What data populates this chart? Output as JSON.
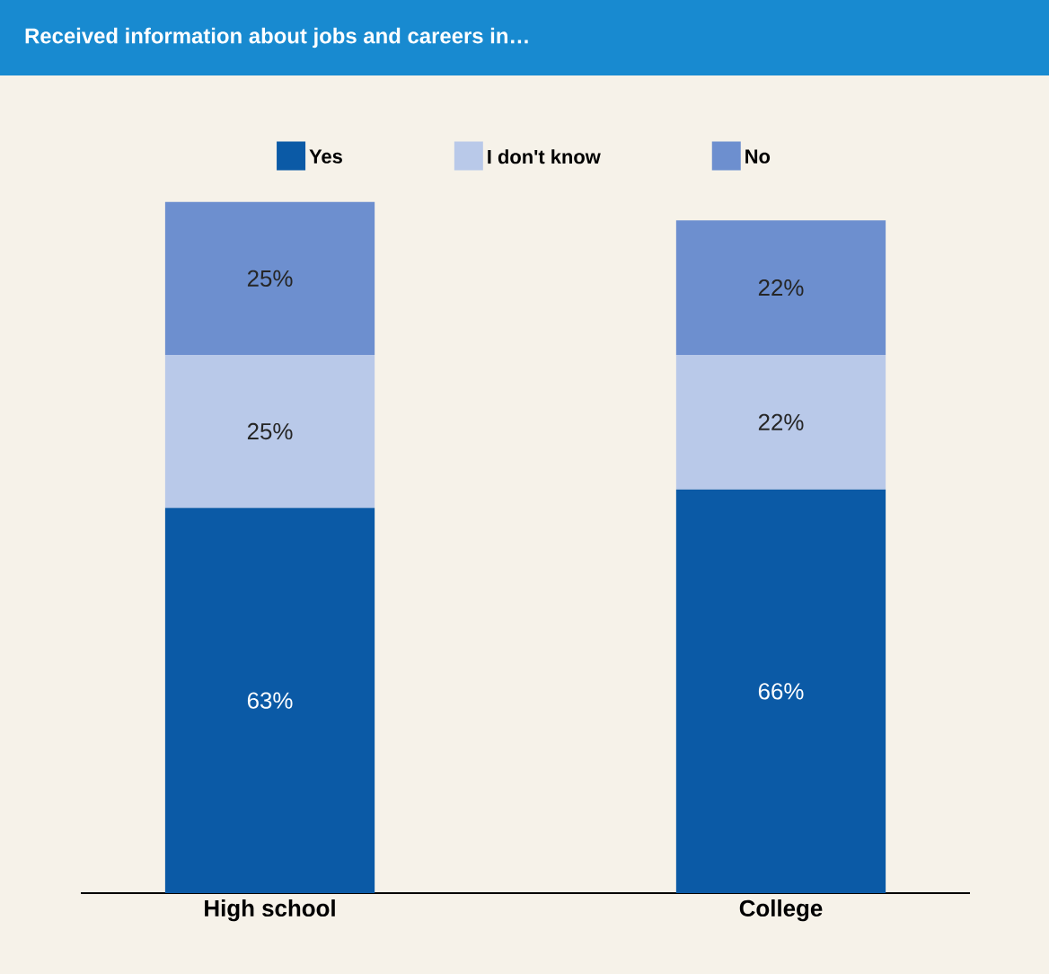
{
  "chart_data": {
    "type": "bar",
    "stacked": true,
    "title": "Received information about jobs and careers in…",
    "categories": [
      "High school",
      "College"
    ],
    "legend": "top",
    "series": [
      {
        "name": "Yes",
        "color": "#0b5aa6",
        "values": [
          63,
          66
        ],
        "value_labels": [
          "63%",
          "66%"
        ]
      },
      {
        "name": "I don't know",
        "color": "#b9c9e9",
        "values": [
          25,
          22
        ],
        "value_labels": [
          "25%",
          "22%"
        ]
      },
      {
        "name": "No",
        "color": "#6d8fcf",
        "values": [
          25,
          22
        ],
        "value_labels": [
          "25%",
          "22%"
        ]
      }
    ]
  }
}
